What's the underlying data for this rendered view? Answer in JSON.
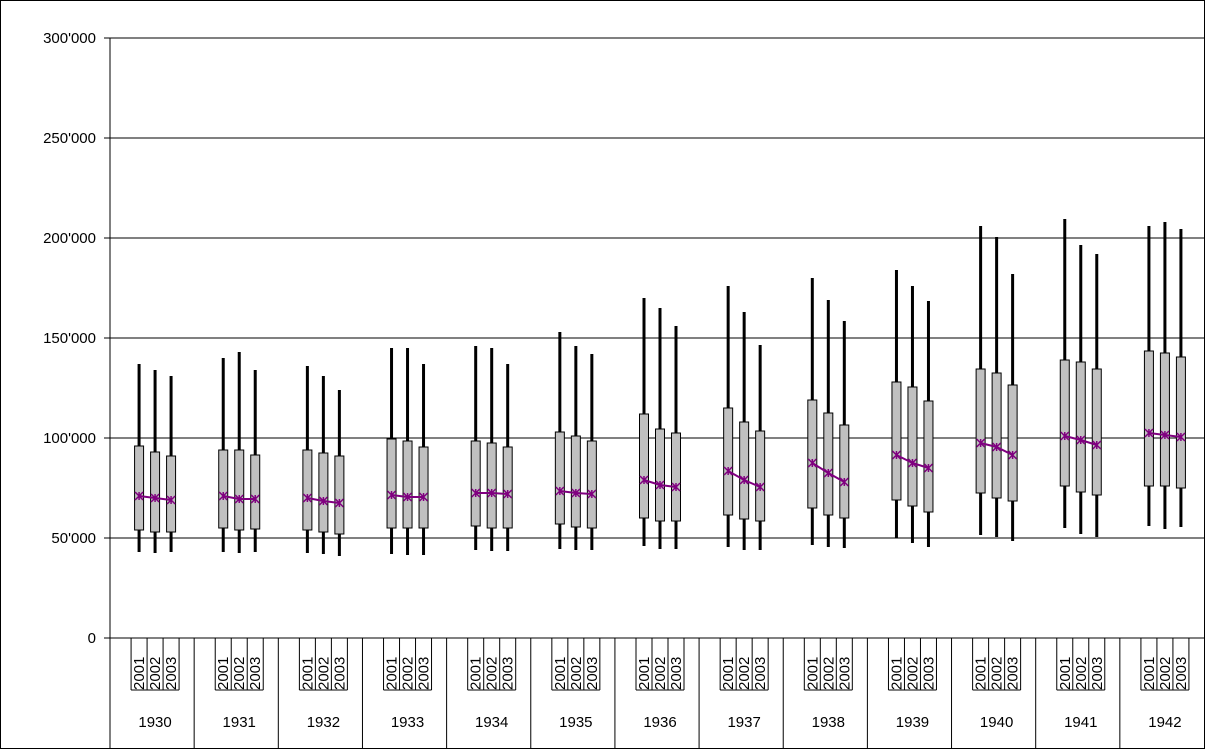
{
  "chart_data": {
    "type": "boxplot",
    "y_axis": {
      "min": 0,
      "max": 300000,
      "ticks": [
        0,
        50000,
        100000,
        150000,
        200000,
        250000,
        300000
      ],
      "tick_labels": [
        "0",
        "50'000",
        "100'000",
        "150'000",
        "200'000",
        "250'000",
        "300'000"
      ]
    },
    "grid": true,
    "legend": "none",
    "groups": [
      "1930",
      "1931",
      "1932",
      "1933",
      "1934",
      "1935",
      "1936",
      "1937",
      "1938",
      "1939",
      "1940",
      "1941",
      "1942"
    ],
    "subcategories": [
      "2001",
      "2002",
      "2003"
    ],
    "series": [
      {
        "group": "1930",
        "year": "2001",
        "min": 43000,
        "q1": 54000,
        "q3": 96000,
        "max": 137000,
        "mean": 71000
      },
      {
        "group": "1930",
        "year": "2002",
        "min": 42500,
        "q1": 53000,
        "q3": 93000,
        "max": 134000,
        "mean": 70000
      },
      {
        "group": "1930",
        "year": "2003",
        "min": 43000,
        "q1": 53000,
        "q3": 91000,
        "max": 131000,
        "mean": 69000
      },
      {
        "group": "1931",
        "year": "2001",
        "min": 43000,
        "q1": 55000,
        "q3": 94000,
        "max": 140000,
        "mean": 71000
      },
      {
        "group": "1931",
        "year": "2002",
        "min": 42500,
        "q1": 54000,
        "q3": 94000,
        "max": 143000,
        "mean": 69500
      },
      {
        "group": "1931",
        "year": "2003",
        "min": 43000,
        "q1": 54500,
        "q3": 91500,
        "max": 134000,
        "mean": 69500
      },
      {
        "group": "1932",
        "year": "2001",
        "min": 42500,
        "q1": 54000,
        "q3": 94000,
        "max": 136000,
        "mean": 70000
      },
      {
        "group": "1932",
        "year": "2002",
        "min": 42000,
        "q1": 53000,
        "q3": 92500,
        "max": 131000,
        "mean": 68500
      },
      {
        "group": "1932",
        "year": "2003",
        "min": 41000,
        "q1": 52000,
        "q3": 91000,
        "max": 124000,
        "mean": 67500
      },
      {
        "group": "1933",
        "year": "2001",
        "min": 42000,
        "q1": 55000,
        "q3": 99500,
        "max": 145000,
        "mean": 71500
      },
      {
        "group": "1933",
        "year": "2002",
        "min": 41500,
        "q1": 55000,
        "q3": 98500,
        "max": 145000,
        "mean": 70500
      },
      {
        "group": "1933",
        "year": "2003",
        "min": 41500,
        "q1": 55000,
        "q3": 95500,
        "max": 137000,
        "mean": 70500
      },
      {
        "group": "1934",
        "year": "2001",
        "min": 44000,
        "q1": 56000,
        "q3": 98500,
        "max": 146000,
        "mean": 72500
      },
      {
        "group": "1934",
        "year": "2002",
        "min": 43500,
        "q1": 55000,
        "q3": 97500,
        "max": 145000,
        "mean": 72500
      },
      {
        "group": "1934",
        "year": "2003",
        "min": 43500,
        "q1": 55000,
        "q3": 95500,
        "max": 137000,
        "mean": 72000
      },
      {
        "group": "1935",
        "year": "2001",
        "min": 44500,
        "q1": 57000,
        "q3": 103000,
        "max": 153000,
        "mean": 73500
      },
      {
        "group": "1935",
        "year": "2002",
        "min": 44000,
        "q1": 55500,
        "q3": 101000,
        "max": 146000,
        "mean": 72500
      },
      {
        "group": "1935",
        "year": "2003",
        "min": 44000,
        "q1": 55000,
        "q3": 98500,
        "max": 142000,
        "mean": 72000
      },
      {
        "group": "1936",
        "year": "2001",
        "min": 46000,
        "q1": 60000,
        "q3": 112000,
        "max": 170000,
        "mean": 79000
      },
      {
        "group": "1936",
        "year": "2002",
        "min": 44500,
        "q1": 58500,
        "q3": 104500,
        "max": 165000,
        "mean": 76500
      },
      {
        "group": "1936",
        "year": "2003",
        "min": 44500,
        "q1": 58500,
        "q3": 102500,
        "max": 156000,
        "mean": 75500
      },
      {
        "group": "1937",
        "year": "2001",
        "min": 45500,
        "q1": 61500,
        "q3": 115000,
        "max": 176000,
        "mean": 83500
      },
      {
        "group": "1937",
        "year": "2002",
        "min": 44000,
        "q1": 59500,
        "q3": 108000,
        "max": 163000,
        "mean": 79000
      },
      {
        "group": "1937",
        "year": "2003",
        "min": 44000,
        "q1": 58500,
        "q3": 103500,
        "max": 146500,
        "mean": 75500
      },
      {
        "group": "1938",
        "year": "2001",
        "min": 46500,
        "q1": 65000,
        "q3": 119000,
        "max": 180000,
        "mean": 87500
      },
      {
        "group": "1938",
        "year": "2002",
        "min": 45500,
        "q1": 61500,
        "q3": 112500,
        "max": 169000,
        "mean": 82500
      },
      {
        "group": "1938",
        "year": "2003",
        "min": 45000,
        "q1": 60000,
        "q3": 106500,
        "max": 158500,
        "mean": 78000
      },
      {
        "group": "1939",
        "year": "2001",
        "min": 50000,
        "q1": 69000,
        "q3": 128000,
        "max": 184000,
        "mean": 91500
      },
      {
        "group": "1939",
        "year": "2002",
        "min": 47500,
        "q1": 66000,
        "q3": 125500,
        "max": 176000,
        "mean": 87500
      },
      {
        "group": "1939",
        "year": "2003",
        "min": 45500,
        "q1": 63000,
        "q3": 118500,
        "max": 168500,
        "mean": 85000
      },
      {
        "group": "1940",
        "year": "2001",
        "min": 51500,
        "q1": 72500,
        "q3": 134500,
        "max": 206000,
        "mean": 97500
      },
      {
        "group": "1940",
        "year": "2002",
        "min": 50500,
        "q1": 70000,
        "q3": 132500,
        "max": 200500,
        "mean": 95500
      },
      {
        "group": "1940",
        "year": "2003",
        "min": 48500,
        "q1": 68500,
        "q3": 126500,
        "max": 182000,
        "mean": 91500
      },
      {
        "group": "1941",
        "year": "2001",
        "min": 55000,
        "q1": 76000,
        "q3": 139000,
        "max": 209500,
        "mean": 101000
      },
      {
        "group": "1941",
        "year": "2002",
        "min": 52000,
        "q1": 73000,
        "q3": 138000,
        "max": 196500,
        "mean": 99000
      },
      {
        "group": "1941",
        "year": "2003",
        "min": 50500,
        "q1": 71500,
        "q3": 134500,
        "max": 192000,
        "mean": 96500
      },
      {
        "group": "1942",
        "year": "2001",
        "min": 56000,
        "q1": 76000,
        "q3": 143500,
        "max": 206000,
        "mean": 102500
      },
      {
        "group": "1942",
        "year": "2002",
        "min": 54500,
        "q1": 76000,
        "q3": 142500,
        "max": 208000,
        "mean": 101500
      },
      {
        "group": "1942",
        "year": "2003",
        "min": 55500,
        "q1": 75000,
        "q3": 140500,
        "max": 204500,
        "mean": 100500
      }
    ],
    "colors": {
      "box_fill": "#c0c0c0",
      "box_stroke": "#000000",
      "whisker": "#000000",
      "mean_line": "#800080",
      "gridline": "#000000"
    }
  }
}
